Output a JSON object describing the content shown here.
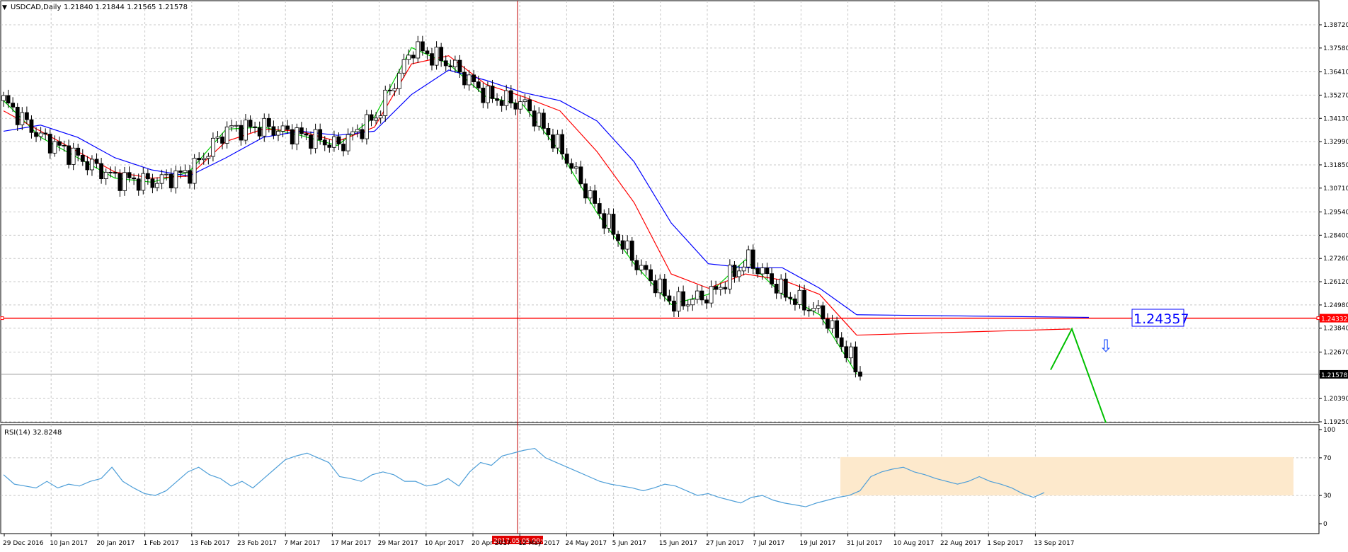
{
  "header": {
    "symbol": "USDCAD,Daily",
    "ohlc": "1.21840 1.21844 1.21565 1.21578"
  },
  "price_axis": {
    "labels": [
      "1.38720",
      "1.37580",
      "1.36410",
      "1.35270",
      "1.34130",
      "1.32990",
      "1.31850",
      "1.30710",
      "1.29540",
      "1.28400",
      "1.27260",
      "1.26120",
      "1.24980",
      "1.23840",
      "1.22670",
      "1.21578",
      "1.20390",
      "1.19250"
    ],
    "current_price": "1.21578",
    "hline_price": "1.24332"
  },
  "annotation": {
    "text": "1.24357"
  },
  "crosshair": {
    "label": "2017.05.05 00:00"
  },
  "rsi": {
    "label": "RSI(14) 32.8248",
    "levels": [
      "100",
      "70",
      "30",
      "0"
    ]
  },
  "date_axis": {
    "labels": [
      "29 Dec 2016",
      "10 Jan 2017",
      "20 Jan 2017",
      "1 Feb 2017",
      "13 Feb 2017",
      "23 Feb 2017",
      "7 Mar 2017",
      "17 Mar 2017",
      "29 Mar 2017",
      "10 Apr 2017",
      "20 Apr 2017",
      "12 May 2017",
      "24 May 2017",
      "5 Jun 2017",
      "15 Jun 2017",
      "27 Jun 2017",
      "7 Jul 2017",
      "19 Jul 2017",
      "31 Jul 2017",
      "10 Aug 2017",
      "22 Aug 2017",
      "1 Sep 2017",
      "13 Sep 2017"
    ]
  },
  "colors": {
    "up_candle": "#ffffff",
    "down_candle": "#000000",
    "ema_fast": "#00d000",
    "ema_mid": "#ff0000",
    "ema_slow": "#0000ff",
    "hline": "#ff0000",
    "crosshair": "#c00000",
    "rsi_line": "#4f9fd8",
    "rsi_zone": "#fde9cc",
    "forecast": "#00c000",
    "arrow": "#2050ff",
    "grid": "#c8c8c8"
  },
  "chart_data": {
    "type": "line",
    "title": "USDCAD,Daily",
    "ohlc_last": [
      1.2184,
      1.21844,
      1.21565,
      1.21578
    ],
    "x": [
      "29 Dec 2016",
      "10 Jan 2017",
      "20 Jan 2017",
      "1 Feb 2017",
      "13 Feb 2017",
      "23 Feb 2017",
      "7 Mar 2017",
      "17 Mar 2017",
      "29 Mar 2017",
      "10 Apr 2017",
      "20 Apr 2017",
      "5 May 2017",
      "12 May 2017",
      "24 May 2017",
      "5 Jun 2017",
      "15 Jun 2017",
      "27 Jun 2017",
      "7 Jul 2017",
      "19 Jul 2017",
      "31 Jul 2017",
      "10 Aug 2017",
      "22 Aug 2017",
      "1 Sep 2017",
      "13 Sep 2017"
    ],
    "series": [
      {
        "values": [
          1.35,
          1.332,
          1.322,
          1.312,
          1.31,
          1.315,
          1.336,
          1.337,
          1.333,
          1.328,
          1.342,
          1.376,
          1.368,
          1.352,
          1.348,
          1.325,
          1.295,
          1.27,
          1.25,
          1.255,
          1.272,
          1.255,
          1.245,
          1.216
        ]
      },
      {
        "values": [
          1.345,
          1.335,
          1.325,
          1.315,
          1.312,
          1.313,
          1.33,
          1.336,
          1.335,
          1.33,
          1.337,
          1.368,
          1.372,
          1.358,
          1.352,
          1.345,
          1.325,
          1.3,
          1.265,
          1.258,
          1.265,
          1.262,
          1.255,
          1.235
        ]
      },
      {
        "values": [
          1.335,
          1.338,
          1.332,
          1.322,
          1.316,
          1.313,
          1.322,
          1.332,
          1.335,
          1.333,
          1.335,
          1.353,
          1.365,
          1.36,
          1.354,
          1.35,
          1.34,
          1.32,
          1.29,
          1.27,
          1.268,
          1.268,
          1.258,
          1.245
        ]
      }
    ],
    "ylim": [
      1.1925,
      1.3872
    ],
    "horizontal_line": 1.24332,
    "rsi": {
      "label": "RSI(14)",
      "last": 32.8248,
      "levels": [
        30,
        70
      ],
      "ylim": [
        0,
        100
      ],
      "values": [
        52,
        42,
        40,
        38,
        45,
        38,
        42,
        40,
        45,
        48,
        60,
        45,
        38,
        32,
        30,
        35,
        45,
        55,
        60,
        52,
        48,
        40,
        45,
        38,
        48,
        58,
        68,
        72,
        75,
        70,
        65,
        50,
        48,
        45,
        52,
        55,
        52,
        45,
        45,
        40,
        42,
        48,
        40,
        55,
        65,
        62,
        72,
        75,
        78,
        80,
        70,
        65,
        60,
        55,
        50,
        45,
        42,
        40,
        38,
        35,
        38,
        42,
        40,
        35,
        30,
        32,
        28,
        25,
        22,
        28,
        30,
        25,
        22,
        20,
        18,
        22,
        25,
        28,
        30,
        35,
        50,
        55,
        58,
        60,
        55,
        52,
        48,
        45,
        42,
        45,
        50,
        45,
        42,
        38,
        32,
        28,
        33
      ]
    },
    "forecast_points": [
      [
        1.218,
        1
      ],
      [
        1.238,
        1
      ],
      [
        1.192,
        1
      ]
    ]
  }
}
